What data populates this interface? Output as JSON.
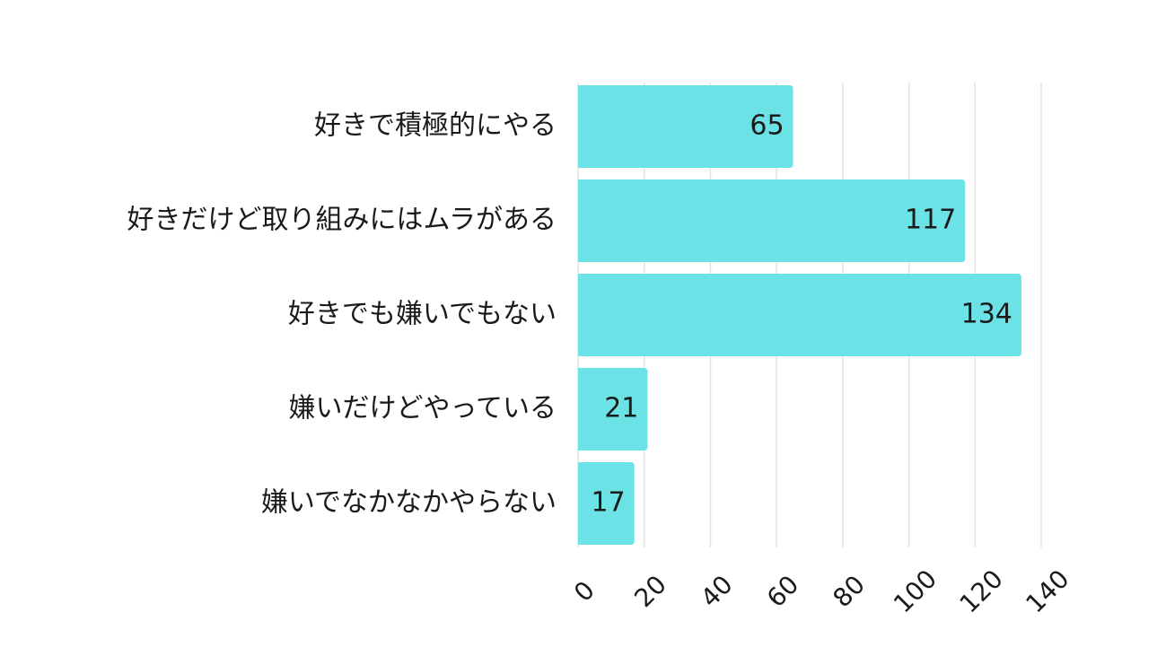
{
  "chart_data": {
    "type": "bar",
    "orientation": "horizontal",
    "categories": [
      "好きで積極的にやる",
      "好きだけど取り組みにはムラがある",
      "好きでも嫌いでもない",
      "嫌いだけどやっている",
      "嫌いでなかなかやらない"
    ],
    "values": [
      65,
      117,
      134,
      21,
      17
    ],
    "data_labels": [
      "65",
      "117",
      "134",
      "21",
      "17"
    ],
    "xlim": [
      0,
      140
    ],
    "x_ticks": [
      "0",
      "20",
      "40",
      "60",
      "80",
      "100",
      "120",
      "140"
    ],
    "tick_rotation": "diagonal",
    "grid": "vertical",
    "bar_color": "#6be3e6",
    "legend": "none"
  }
}
